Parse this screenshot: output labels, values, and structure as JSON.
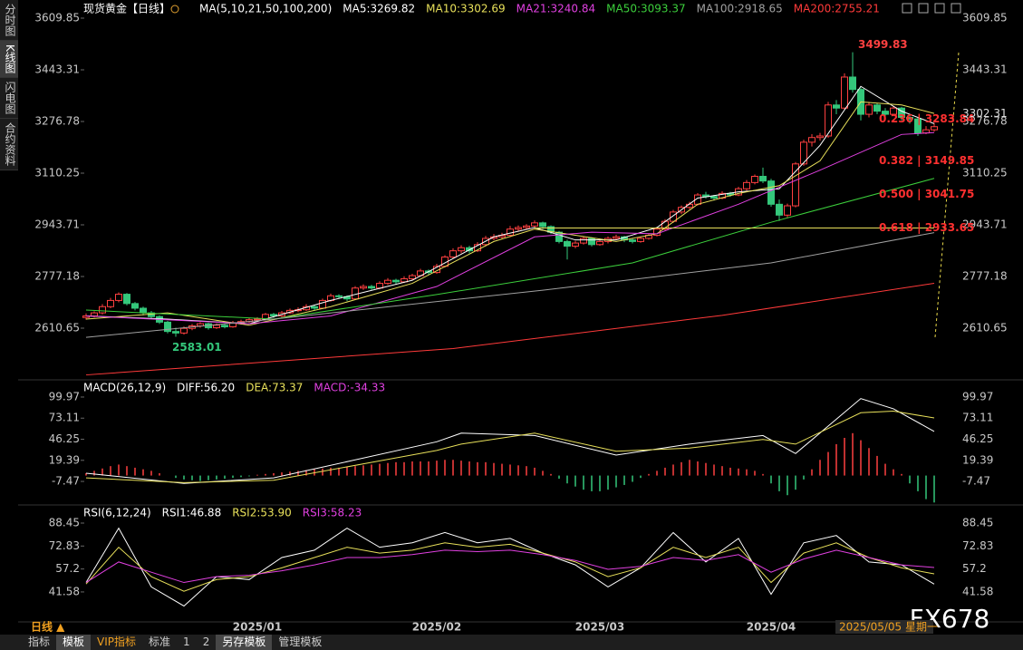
{
  "sidebar_tabs": [
    "分时图",
    "K线图",
    "闪电图",
    "合约资料"
  ],
  "bottom_tabs": [
    "指标",
    "模板",
    "VIP指标",
    "标准",
    "1",
    "2",
    "另存模板",
    "管理模板"
  ],
  "watermark": "FX678",
  "chart_data": [
    {
      "type": "candlestick",
      "title": "现货黄金【日线】",
      "indicator_title": "MA(5,10,21,50,100,200)",
      "period_label": "日线 ▲",
      "hover_date": "2025/05/05 星期一",
      "current_price": 3302.31,
      "up_color": "#ff4040",
      "down_color": "#34c77b",
      "xlim": [
        0,
        104
      ],
      "xticks": [
        {
          "value": 21,
          "label": "2025/01"
        },
        {
          "value": 43,
          "label": "2025/02"
        },
        {
          "value": 63,
          "label": "2025/03"
        },
        {
          "value": 84,
          "label": "2025/04"
        }
      ],
      "ylim": [
        2455.8,
        3639.1
      ],
      "yticks": [
        3609.85,
        3443.31,
        3276.78,
        3110.25,
        2943.71,
        2777.18,
        2610.65
      ],
      "ohlc": [
        [
          2645,
          2658,
          2638,
          2650
        ],
        [
          2650,
          2665,
          2645,
          2660
        ],
        [
          2660,
          2688,
          2655,
          2680
        ],
        [
          2680,
          2708,
          2675,
          2700
        ],
        [
          2700,
          2726,
          2694,
          2720
        ],
        [
          2720,
          2724,
          2684,
          2690
        ],
        [
          2690,
          2695,
          2668,
          2675
        ],
        [
          2675,
          2680,
          2652,
          2660
        ],
        [
          2660,
          2666,
          2640,
          2648
        ],
        [
          2648,
          2652,
          2624,
          2630
        ],
        [
          2630,
          2634,
          2594,
          2600
        ],
        [
          2600,
          2612,
          2583.01,
          2595
        ],
        [
          2595,
          2616,
          2590,
          2610
        ],
        [
          2610,
          2624,
          2604,
          2618
        ],
        [
          2618,
          2630,
          2612,
          2625
        ],
        [
          2625,
          2628,
          2606,
          2612
        ],
        [
          2612,
          2626,
          2608,
          2620
        ],
        [
          2620,
          2624,
          2610,
          2615
        ],
        [
          2615,
          2634,
          2612,
          2628
        ],
        [
          2628,
          2638,
          2622,
          2632
        ],
        [
          2632,
          2644,
          2628,
          2638
        ],
        [
          2638,
          2646,
          2634,
          2640
        ],
        [
          2640,
          2660,
          2636,
          2655
        ],
        [
          2655,
          2660,
          2644,
          2650
        ],
        [
          2650,
          2666,
          2646,
          2660
        ],
        [
          2660,
          2674,
          2656,
          2668
        ],
        [
          2668,
          2678,
          2662,
          2670
        ],
        [
          2670,
          2688,
          2666,
          2680
        ],
        [
          2680,
          2684,
          2668,
          2675
        ],
        [
          2675,
          2706,
          2672,
          2700
        ],
        [
          2700,
          2722,
          2696,
          2715
        ],
        [
          2715,
          2720,
          2706,
          2712
        ],
        [
          2712,
          2716,
          2698,
          2705
        ],
        [
          2705,
          2746,
          2702,
          2740
        ],
        [
          2740,
          2752,
          2734,
          2745
        ],
        [
          2745,
          2750,
          2734,
          2740
        ],
        [
          2740,
          2762,
          2736,
          2755
        ],
        [
          2755,
          2772,
          2750,
          2765
        ],
        [
          2765,
          2770,
          2752,
          2760
        ],
        [
          2760,
          2778,
          2756,
          2770
        ],
        [
          2770,
          2786,
          2764,
          2780
        ],
        [
          2780,
          2802,
          2776,
          2795
        ],
        [
          2795,
          2800,
          2782,
          2790
        ],
        [
          2790,
          2818,
          2786,
          2810
        ],
        [
          2810,
          2846,
          2806,
          2840
        ],
        [
          2840,
          2868,
          2834,
          2860
        ],
        [
          2860,
          2878,
          2852,
          2870
        ],
        [
          2870,
          2876,
          2852,
          2860
        ],
        [
          2860,
          2888,
          2856,
          2880
        ],
        [
          2880,
          2908,
          2874,
          2900
        ],
        [
          2900,
          2914,
          2894,
          2905
        ],
        [
          2905,
          2918,
          2898,
          2910
        ],
        [
          2910,
          2940,
          2904,
          2930
        ],
        [
          2930,
          2942,
          2922,
          2935
        ],
        [
          2935,
          2946,
          2928,
          2940
        ],
        [
          2940,
          2958,
          2934,
          2950
        ],
        [
          2950,
          2954,
          2930,
          2938
        ],
        [
          2938,
          2942,
          2914,
          2920
        ],
        [
          2920,
          2924,
          2884,
          2890
        ],
        [
          2890,
          2896,
          2832,
          2875
        ],
        [
          2875,
          2892,
          2868,
          2885
        ],
        [
          2885,
          2906,
          2880,
          2900
        ],
        [
          2900,
          2904,
          2874,
          2880
        ],
        [
          2880,
          2896,
          2876,
          2890
        ],
        [
          2890,
          2906,
          2884,
          2900
        ],
        [
          2900,
          2912,
          2894,
          2905
        ],
        [
          2905,
          2908,
          2888,
          2895
        ],
        [
          2895,
          2900,
          2884,
          2890
        ],
        [
          2890,
          2906,
          2886,
          2900
        ],
        [
          2900,
          2916,
          2896,
          2910
        ],
        [
          2910,
          2936,
          2906,
          2930
        ],
        [
          2930,
          2962,
          2926,
          2955
        ],
        [
          2955,
          2992,
          2950,
          2985
        ],
        [
          2985,
          3006,
          2978,
          3000
        ],
        [
          3000,
          3018,
          2994,
          3010
        ],
        [
          3010,
          3046,
          3006,
          3040
        ],
        [
          3040,
          3050,
          3028,
          3035
        ],
        [
          3035,
          3040,
          3022,
          3030
        ],
        [
          3030,
          3052,
          3026,
          3045
        ],
        [
          3045,
          3050,
          3034,
          3040
        ],
        [
          3040,
          3066,
          3036,
          3060
        ],
        [
          3060,
          3088,
          3054,
          3080
        ],
        [
          3080,
          3106,
          3074,
          3100
        ],
        [
          3100,
          3128,
          3078,
          3085
        ],
        [
          3085,
          3092,
          3002,
          3010
        ],
        [
          3010,
          3025,
          2956,
          2975
        ],
        [
          2975,
          3012,
          2968,
          3005
        ],
        [
          3005,
          3146,
          3000,
          3140
        ],
        [
          3140,
          3218,
          3134,
          3210
        ],
        [
          3210,
          3236,
          3196,
          3225
        ],
        [
          3225,
          3240,
          3215,
          3230
        ],
        [
          3230,
          3340,
          3224,
          3330
        ],
        [
          3330,
          3346,
          3300,
          3320
        ],
        [
          3320,
          3432,
          3316,
          3420
        ],
        [
          3420,
          3499.83,
          3370,
          3380
        ],
        [
          3380,
          3386,
          3280,
          3300
        ],
        [
          3300,
          3340,
          3290,
          3330
        ],
        [
          3330,
          3336,
          3300,
          3310
        ],
        [
          3310,
          3320,
          3286,
          3300
        ],
        [
          3300,
          3326,
          3294,
          3320
        ],
        [
          3320,
          3324,
          3280,
          3290
        ],
        [
          3290,
          3300,
          3270,
          3285
        ],
        [
          3285,
          3290,
          3230,
          3240
        ],
        [
          3240,
          3262,
          3236,
          3250
        ],
        [
          3250,
          3272,
          3244,
          3260
        ]
      ],
      "series": [
        {
          "name": "MA5:3269.82",
          "color": "#ffffff",
          "x": [
            0,
            10,
            20,
            30,
            40,
            50,
            55,
            60,
            65,
            70,
            75,
            80,
            85,
            90,
            95,
            100,
            104
          ],
          "values": [
            2650,
            2640,
            2625,
            2700,
            2765,
            2905,
            2935,
            2895,
            2895,
            2935,
            3030,
            3050,
            3060,
            3200,
            3390,
            3310,
            3269.82
          ]
        },
        {
          "name": "MA10:3302.69",
          "color": "#e8e05a",
          "x": [
            0,
            10,
            20,
            30,
            40,
            50,
            55,
            60,
            65,
            70,
            75,
            80,
            85,
            90,
            95,
            100,
            104
          ],
          "values": [
            2640,
            2660,
            2620,
            2680,
            2755,
            2890,
            2930,
            2910,
            2890,
            2915,
            3010,
            3045,
            3070,
            3150,
            3340,
            3330,
            3302.69
          ]
        },
        {
          "name": "MA21:3240.84",
          "color": "#e040e0",
          "x": [
            0,
            20,
            30,
            43,
            55,
            62,
            70,
            80,
            90,
            100,
            104
          ],
          "values": [
            2650,
            2625,
            2650,
            2745,
            2905,
            2920,
            2915,
            3010,
            3120,
            3235,
            3240.84
          ]
        },
        {
          "name": "MA50:3093.37",
          "color": "#3ccf3c",
          "x": [
            0,
            23,
            43,
            67,
            84,
            104
          ],
          "values": [
            2669,
            2640,
            2719,
            2821,
            2952,
            3093.37
          ]
        },
        {
          "name": "MA100:2918.65",
          "color": "#a0a0a0",
          "x": [
            0,
            23,
            56,
            84,
            104
          ],
          "values": [
            2581,
            2640,
            2733,
            2821,
            2918.65
          ]
        },
        {
          "name": "MA200:2755.21",
          "color": "#ff3a3a",
          "x": [
            0,
            45,
            78,
            104
          ],
          "values": [
            2460,
            2545,
            2652,
            2755.21
          ]
        }
      ],
      "fib_levels": [
        {
          "label": "0.236 | 3283.84",
          "value": 3283.84
        },
        {
          "label": "0.382 | 3149.85",
          "value": 3149.85
        },
        {
          "label": "0.500 | 3041.75",
          "value": 3041.75
        },
        {
          "label": "0.618 | 2933.65",
          "value": 2933.65
        }
      ]
    },
    {
      "type": "macd",
      "title": "MACD(26,12,9)",
      "xlim": [
        0,
        104
      ],
      "ylim": [
        -35.13,
        118.41
      ],
      "yticks": [
        99.97,
        73.11,
        46.25,
        19.39,
        -7.47
      ],
      "series": [
        {
          "name": "DIFF:56.20",
          "color": "#ffffff",
          "x": [
            0,
            12,
            23,
            43,
            46,
            55,
            65,
            74,
            83,
            87,
            95,
            99,
            104
          ],
          "values": [
            3,
            -10,
            -3,
            43,
            54,
            51,
            26,
            40,
            51,
            28,
            98,
            85,
            56.2
          ]
        },
        {
          "name": "DEA:73.37",
          "color": "#e8e05a",
          "x": [
            0,
            12,
            23,
            43,
            46,
            55,
            65,
            74,
            83,
            87,
            95,
            99,
            104
          ],
          "values": [
            -3,
            -9,
            -6,
            32,
            40,
            54,
            31,
            35,
            46,
            40,
            80,
            82,
            73.37
          ]
        }
      ],
      "histogram": {
        "name": "MACD:-34.33",
        "name_color": "#e040e0",
        "up_color": "#ff4040",
        "down_color": "#34c77b",
        "values": [
          3,
          6,
          9,
          12,
          14,
          12,
          10,
          8,
          6,
          3,
          0,
          -3,
          -5,
          -6,
          -7,
          -6,
          -5,
          -4,
          -3,
          -2,
          -1,
          1,
          2,
          3,
          4,
          5,
          6,
          7,
          8,
          9,
          10,
          10,
          11,
          12,
          13,
          14,
          15,
          16,
          17,
          17,
          18,
          18,
          18,
          19,
          20,
          20,
          19,
          18,
          17,
          17,
          16,
          15,
          14,
          13,
          12,
          10,
          6,
          2,
          -4,
          -10,
          -14,
          -18,
          -20,
          -20,
          -18,
          -15,
          -12,
          -8,
          -3,
          2,
          6,
          10,
          14,
          17,
          20,
          18,
          16,
          14,
          12,
          10,
          9,
          8,
          6,
          2,
          -10,
          -20,
          -25,
          -18,
          -5,
          8,
          20,
          30,
          40,
          48,
          54,
          45,
          35,
          25,
          15,
          8,
          2,
          -10,
          -20,
          -30,
          -34.33
        ]
      }
    },
    {
      "type": "rsi",
      "title": "RSI(6,12,24)",
      "xlim": [
        0,
        104
      ],
      "ylim": [
        21.8,
        97.7
      ],
      "yticks": [
        88.45,
        72.83,
        57.2,
        41.58
      ],
      "series": [
        {
          "name": "RSI1:46.88",
          "color": "#ffffff",
          "x": [
            0,
            4,
            8,
            12,
            16,
            20,
            24,
            28,
            32,
            36,
            40,
            44,
            48,
            52,
            56,
            60,
            64,
            68,
            72,
            76,
            80,
            84,
            88,
            92,
            96,
            100,
            104
          ],
          "values": [
            48,
            85,
            45,
            32,
            52,
            50,
            65,
            70,
            85,
            72,
            75,
            82,
            75,
            78,
            68,
            60,
            45,
            58,
            82,
            62,
            78,
            40,
            75,
            80,
            62,
            60,
            46.88
          ]
        },
        {
          "name": "RSI2:53.90",
          "color": "#e8e05a",
          "x": [
            0,
            4,
            8,
            12,
            16,
            20,
            24,
            28,
            32,
            36,
            40,
            44,
            48,
            52,
            56,
            60,
            64,
            68,
            72,
            76,
            80,
            84,
            88,
            92,
            96,
            100,
            104
          ],
          "values": [
            47,
            72,
            52,
            42,
            50,
            52,
            58,
            65,
            72,
            68,
            70,
            75,
            72,
            74,
            68,
            62,
            52,
            58,
            72,
            65,
            72,
            48,
            68,
            75,
            65,
            58,
            53.9
          ]
        },
        {
          "name": "RSI3:58.23",
          "color": "#e040e0",
          "x": [
            0,
            4,
            8,
            12,
            16,
            20,
            24,
            28,
            32,
            36,
            40,
            44,
            48,
            52,
            56,
            60,
            64,
            68,
            72,
            76,
            80,
            84,
            88,
            92,
            96,
            100,
            104
          ],
          "values": [
            48,
            62,
            55,
            48,
            52,
            53,
            56,
            60,
            65,
            65,
            67,
            70,
            69,
            70,
            67,
            63,
            57,
            59,
            65,
            63,
            67,
            55,
            64,
            70,
            65,
            60,
            58.23
          ]
        }
      ]
    }
  ]
}
